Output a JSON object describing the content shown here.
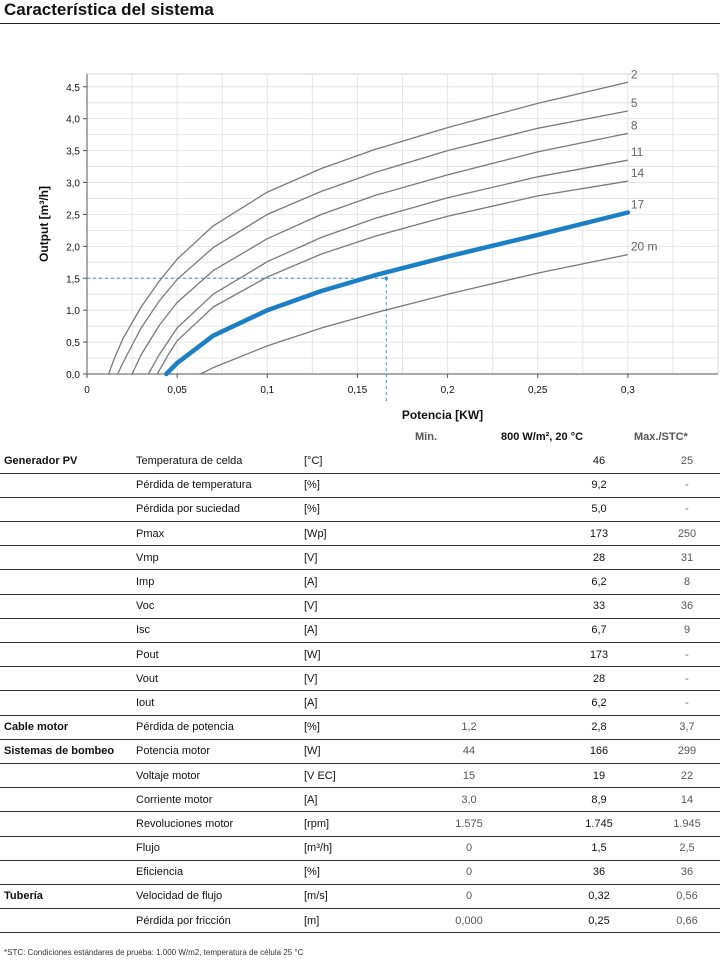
{
  "page": {
    "title": "Característica del sistema",
    "footnote": "*STC: Condiciones estándares de prueba: 1.000 W/m2, temperatura de célula 25 °C"
  },
  "chart_data": {
    "type": "line",
    "title": "",
    "xlabel": "Potencia  [KW]",
    "ylabel": "Output [m³/h]",
    "xlim": [
      0,
      0.35
    ],
    "ylim": [
      0,
      4.7
    ],
    "xticks": [
      "0",
      "0,05",
      "0,1",
      "0,15",
      "0,2",
      "0,25",
      "0,3"
    ],
    "yticks": [
      "0,0",
      "0,5",
      "1,0",
      "1,5",
      "2,0",
      "2,5",
      "3,0",
      "3,5",
      "4,0",
      "4,5"
    ],
    "grid": true,
    "series": [
      {
        "name": "2",
        "x": [
          0.012,
          0.015,
          0.02,
          0.03,
          0.04,
          0.05,
          0.07,
          0.1,
          0.13,
          0.16,
          0.2,
          0.25,
          0.3
        ],
        "y": [
          0.0,
          0.23,
          0.56,
          1.05,
          1.45,
          1.8,
          2.32,
          2.85,
          3.22,
          3.52,
          3.86,
          4.24,
          4.57
        ]
      },
      {
        "name": "5",
        "x": [
          0.017,
          0.02,
          0.03,
          0.04,
          0.05,
          0.07,
          0.1,
          0.13,
          0.16,
          0.2,
          0.25,
          0.3
        ],
        "y": [
          0.0,
          0.18,
          0.72,
          1.14,
          1.48,
          1.98,
          2.5,
          2.86,
          3.16,
          3.5,
          3.85,
          4.12
        ]
      },
      {
        "name": "8",
        "x": [
          0.025,
          0.03,
          0.04,
          0.05,
          0.07,
          0.1,
          0.13,
          0.16,
          0.2,
          0.25,
          0.3
        ],
        "y": [
          0.0,
          0.3,
          0.76,
          1.12,
          1.62,
          2.12,
          2.5,
          2.8,
          3.12,
          3.48,
          3.77
        ]
      },
      {
        "name": "11",
        "x": [
          0.034,
          0.04,
          0.05,
          0.07,
          0.1,
          0.13,
          0.16,
          0.2,
          0.25,
          0.3
        ],
        "y": [
          0.0,
          0.3,
          0.72,
          1.25,
          1.76,
          2.14,
          2.44,
          2.76,
          3.09,
          3.35
        ]
      },
      {
        "name": "14",
        "x": [
          0.039,
          0.045,
          0.05,
          0.07,
          0.1,
          0.13,
          0.16,
          0.2,
          0.25,
          0.3
        ],
        "y": [
          0.0,
          0.3,
          0.52,
          1.05,
          1.52,
          1.88,
          2.16,
          2.47,
          2.79,
          3.02
        ]
      },
      {
        "name": "17",
        "x": [
          0.044,
          0.05,
          0.07,
          0.1,
          0.13,
          0.16,
          0.2,
          0.25,
          0.3
        ],
        "y": [
          0.0,
          0.17,
          0.6,
          1.0,
          1.3,
          1.55,
          1.84,
          2.18,
          2.53
        ]
      },
      {
        "name": "20 m",
        "x": [
          0.063,
          0.07,
          0.1,
          0.13,
          0.16,
          0.2,
          0.25,
          0.3
        ],
        "y": [
          0.0,
          0.1,
          0.44,
          0.72,
          0.96,
          1.25,
          1.58,
          1.87
        ]
      }
    ],
    "highlight_series": "17",
    "operating_point": {
      "x": 0.166,
      "y": 1.5
    }
  },
  "table": {
    "headers": {
      "min": "Min.",
      "nominal": "800 W/m², 20 °C",
      "max": "Max./STC*"
    },
    "rows": [
      {
        "group": "Generador PV",
        "param": "Temperatura de celda",
        "unit": "[°C]",
        "min": "",
        "nominal": "46",
        "max": "25"
      },
      {
        "group": "",
        "param": "Pérdida de temperatura",
        "unit": "[%]",
        "min": "",
        "nominal": "9,2",
        "max": "-"
      },
      {
        "group": "",
        "param": "Pérdida por suciedad",
        "unit": "[%]",
        "min": "",
        "nominal": "5,0",
        "max": "-"
      },
      {
        "group": "",
        "param": "Pmax",
        "unit": "[Wp]",
        "min": "",
        "nominal": "173",
        "max": "250"
      },
      {
        "group": "",
        "param": "Vmp",
        "unit": "[V]",
        "min": "",
        "nominal": "28",
        "max": "31"
      },
      {
        "group": "",
        "param": "Imp",
        "unit": "[A]",
        "min": "",
        "nominal": "6,2",
        "max": "8"
      },
      {
        "group": "",
        "param": "Voc",
        "unit": "[V]",
        "min": "",
        "nominal": "33",
        "max": "36"
      },
      {
        "group": "",
        "param": "Isc",
        "unit": "[A]",
        "min": "",
        "nominal": "6,7",
        "max": "9"
      },
      {
        "group": "",
        "param": "Pout",
        "unit": "[W]",
        "min": "",
        "nominal": "173",
        "max": "-"
      },
      {
        "group": "",
        "param": "Vout",
        "unit": "[V]",
        "min": "",
        "nominal": "28",
        "max": "-"
      },
      {
        "group": "",
        "param": "Iout",
        "unit": "[A]",
        "min": "",
        "nominal": "6,2",
        "max": "-"
      },
      {
        "group": "Cable motor",
        "param": "Pérdida de potencia",
        "unit": "[%]",
        "min": "1,2",
        "nominal": "2,8",
        "max": "3,7"
      },
      {
        "group": "Sistemas de bombeo",
        "param": "Potencia motor",
        "unit": "[W]",
        "min": "44",
        "nominal": "166",
        "max": "299"
      },
      {
        "group": "",
        "param": "Voltaje motor",
        "unit": "[V EC]",
        "min": "15",
        "nominal": "19",
        "max": "22"
      },
      {
        "group": "",
        "param": "Corriente motor",
        "unit": "[A]",
        "min": "3,0",
        "nominal": "8,9",
        "max": "14"
      },
      {
        "group": "",
        "param": "Revoluciones motor",
        "unit": "[rpm]",
        "min": "1.575",
        "nominal": "1.745",
        "max": "1.945"
      },
      {
        "group": "",
        "param": "Flujo",
        "unit": "[m³/h]",
        "min": "0",
        "nominal": "1,5",
        "max": "2,5"
      },
      {
        "group": "",
        "param": "Eficiencia",
        "unit": "[%]",
        "min": "0",
        "nominal": "36",
        "max": "36"
      },
      {
        "group": "Tubería",
        "param": "Velocidad de flujo",
        "unit": "[m/s]",
        "min": "0",
        "nominal": "0,32",
        "max": "0,56"
      },
      {
        "group": "",
        "param": "Pérdida por fricción",
        "unit": "[m]",
        "min": "0,000",
        "nominal": "0,25",
        "max": "0,66"
      }
    ]
  },
  "colors": {
    "grid": "#e4e4e4",
    "curve": "#7a7a7a",
    "highlight": "#1a7fc4",
    "guide": "#3a8fd0"
  }
}
